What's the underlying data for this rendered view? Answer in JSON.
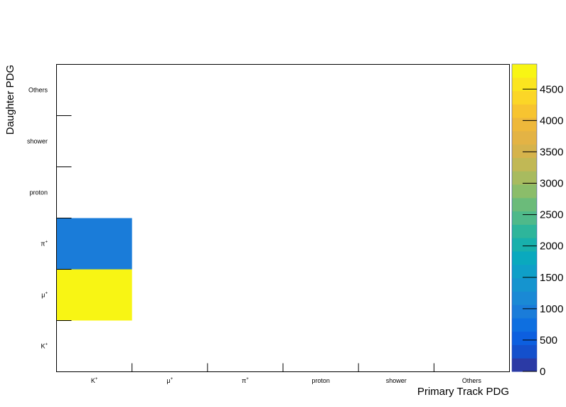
{
  "chart_data": {
    "type": "heatmap",
    "title": "",
    "xlabel": "Primary Track PDG",
    "ylabel": "Daughter PDG",
    "x_categories": [
      {
        "base": "K",
        "sup": "+"
      },
      {
        "base": "μ",
        "sup": "+"
      },
      {
        "base": "π",
        "sup": "+"
      },
      {
        "base": "proton",
        "sup": ""
      },
      {
        "base": "shower",
        "sup": ""
      },
      {
        "base": "Others",
        "sup": ""
      }
    ],
    "y_categories": [
      {
        "base": "K",
        "sup": "+"
      },
      {
        "base": "μ",
        "sup": "+"
      },
      {
        "base": "π",
        "sup": "+"
      },
      {
        "base": "proton",
        "sup": ""
      },
      {
        "base": "shower",
        "sup": ""
      },
      {
        "base": "Others",
        "sup": ""
      }
    ],
    "cells": [
      {
        "x": "K+",
        "y": "μ+",
        "value": 4900
      },
      {
        "x": "K+",
        "y": "π+",
        "value": 1050
      }
    ],
    "colorbar": {
      "min": 0,
      "max": 4900,
      "ticks": [
        0,
        500,
        1000,
        1500,
        2000,
        2500,
        3000,
        3500,
        4000,
        4500
      ],
      "colors": [
        "#2b3aa5",
        "#1450cc",
        "#0d5fdf",
        "#0e6fe0",
        "#1a7cd9",
        "#1a89d5",
        "#1594cf",
        "#0f9fc8",
        "#0aa9be",
        "#18b0ac",
        "#2eb59b",
        "#4fb98a",
        "#6bbb7a",
        "#8bbd6a",
        "#a8bb5f",
        "#c1b855",
        "#d5b34c",
        "#e3b345",
        "#eeb83b",
        "#f7c430",
        "#fbd627",
        "#fbe51f",
        "#f8f514"
      ]
    },
    "grid": false,
    "legend": "colorbar-right"
  }
}
